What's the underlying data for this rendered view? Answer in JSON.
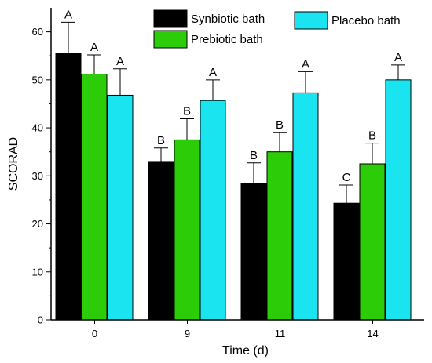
{
  "chart_data": {
    "type": "bar",
    "categories": [
      "0",
      "9",
      "11",
      "14"
    ],
    "xlabel": "Time (d)",
    "ylabel": "SCORAD",
    "ylim": [
      0,
      65
    ],
    "yticks": [
      0,
      10,
      20,
      30,
      40,
      50,
      60
    ],
    "grid": false,
    "legend_position": "top",
    "series": [
      {
        "name": "Synbiotic bath",
        "color": "#000000",
        "values": [
          55.5,
          33.0,
          28.5,
          24.3
        ],
        "errors": [
          6.5,
          2.8,
          4.2,
          3.8
        ],
        "labels": [
          "A",
          "B",
          "B",
          "C"
        ]
      },
      {
        "name": "Prebiotic bath",
        "color": "#2dcc08",
        "values": [
          51.2,
          37.5,
          35.0,
          32.5
        ],
        "errors": [
          4.0,
          4.4,
          4.0,
          4.3
        ],
        "labels": [
          "A",
          "B",
          "B",
          "B"
        ]
      },
      {
        "name": "Placebo bath",
        "color": "#19e4f0",
        "values": [
          46.8,
          45.7,
          47.3,
          50.0
        ],
        "errors": [
          5.5,
          4.3,
          4.4,
          3.1
        ],
        "labels": [
          "A",
          "A",
          "A",
          "A"
        ]
      }
    ]
  }
}
